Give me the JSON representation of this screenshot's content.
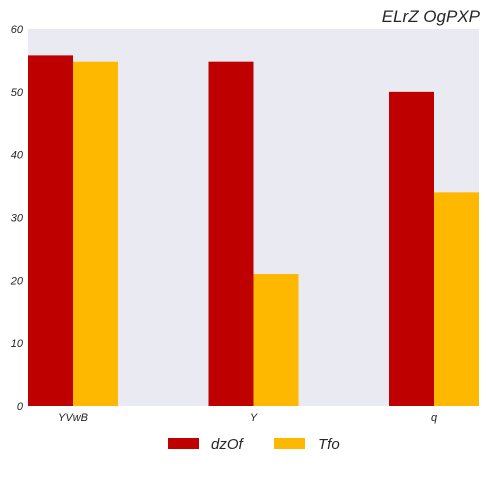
{
  "chart_data": {
    "type": "bar",
    "title": "ELrZ OgPXP",
    "xlabel": "",
    "ylabel": "",
    "categories": [
      "YVwB",
      "Y",
      "q"
    ],
    "series": [
      {
        "name": "dzOf",
        "values": [
          55.8,
          54.8,
          50.0
        ],
        "color": "#bf0000"
      },
      {
        "name": "Tfo",
        "values": [
          54.8,
          21.0,
          34.0
        ],
        "color": "#ffb800"
      }
    ],
    "ylim": [
      0,
      60
    ],
    "yticks": [
      0,
      10,
      20,
      30,
      40,
      50,
      60
    ],
    "grid": false,
    "plot_background": "#eaeaf2",
    "legend_position": "bottom-center"
  }
}
